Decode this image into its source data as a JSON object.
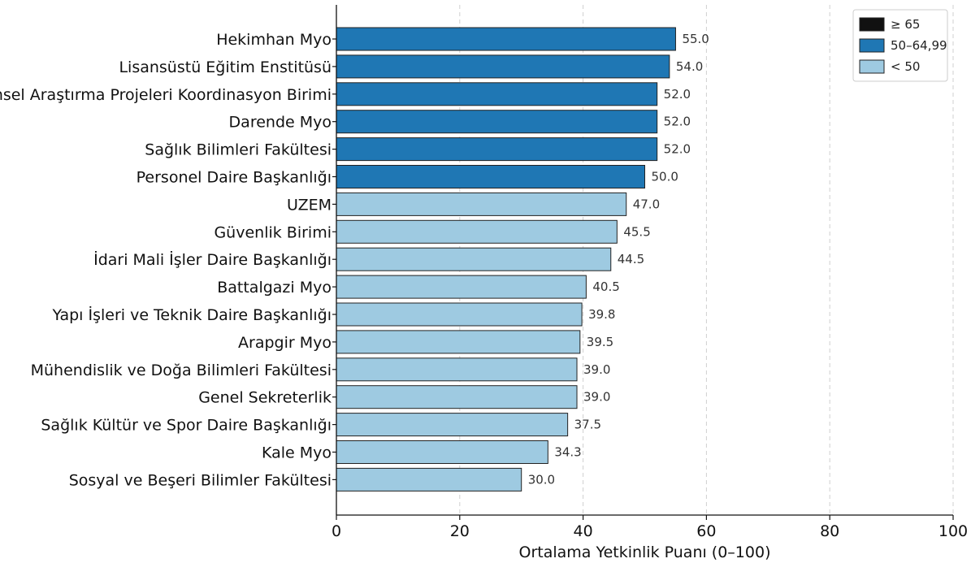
{
  "chart_data": {
    "type": "bar",
    "orientation": "horizontal",
    "title": "",
    "xlabel": "Ortalama Yetkinlik Puanı (0–100)",
    "ylabel": "",
    "xlim": [
      0,
      100
    ],
    "x_ticks": [
      "0",
      "20",
      "40",
      "60",
      "80",
      "100"
    ],
    "grid": true,
    "legend_position": "top-right",
    "categories": [
      "Hekimhan Myo",
      "Lisansüstü Eğitim Enstitüsü",
      "Bilimsel Araştırma Projeleri Koordinasyon Birimi",
      "Darende Myo",
      "Sağlık Bilimleri Fakültesi",
      "Personel Daire Başkanlığı",
      "UZEM",
      "Güvenlik Birimi",
      "İdari Mali İşler Daire Başkanlığı",
      "Battalgazi Myo",
      "Yapı İşleri ve Teknik Daire Başkanlığı",
      "Arapgir Myo",
      "Mühendislik ve Doğa Bilimleri Fakültesi",
      "Genel Sekreterlik",
      "Sağlık Kültür ve Spor Daire Başkanlığı",
      "Kale Myo",
      "Sosyal ve Beşeri Bilimler Fakültesi"
    ],
    "values": [
      55.0,
      54.0,
      52.0,
      52.0,
      52.0,
      50.0,
      47.0,
      45.5,
      44.5,
      40.5,
      39.8,
      39.5,
      39.0,
      39.0,
      37.5,
      34.3,
      30.0
    ],
    "value_labels": [
      "55.0",
      "54.0",
      "52.0",
      "52.0",
      "52.0",
      "50.0",
      "47.0",
      "45.5",
      "44.5",
      "40.5",
      "39.8",
      "39.5",
      "39.0",
      "39.0",
      "37.5",
      "34.3",
      "30.0"
    ],
    "legend": [
      {
        "label": "≥ 65",
        "color": "#111111"
      },
      {
        "label": "50–64,99",
        "color": "#1f77b4"
      },
      {
        "label": "< 50",
        "color": "#9ecae1"
      }
    ]
  }
}
